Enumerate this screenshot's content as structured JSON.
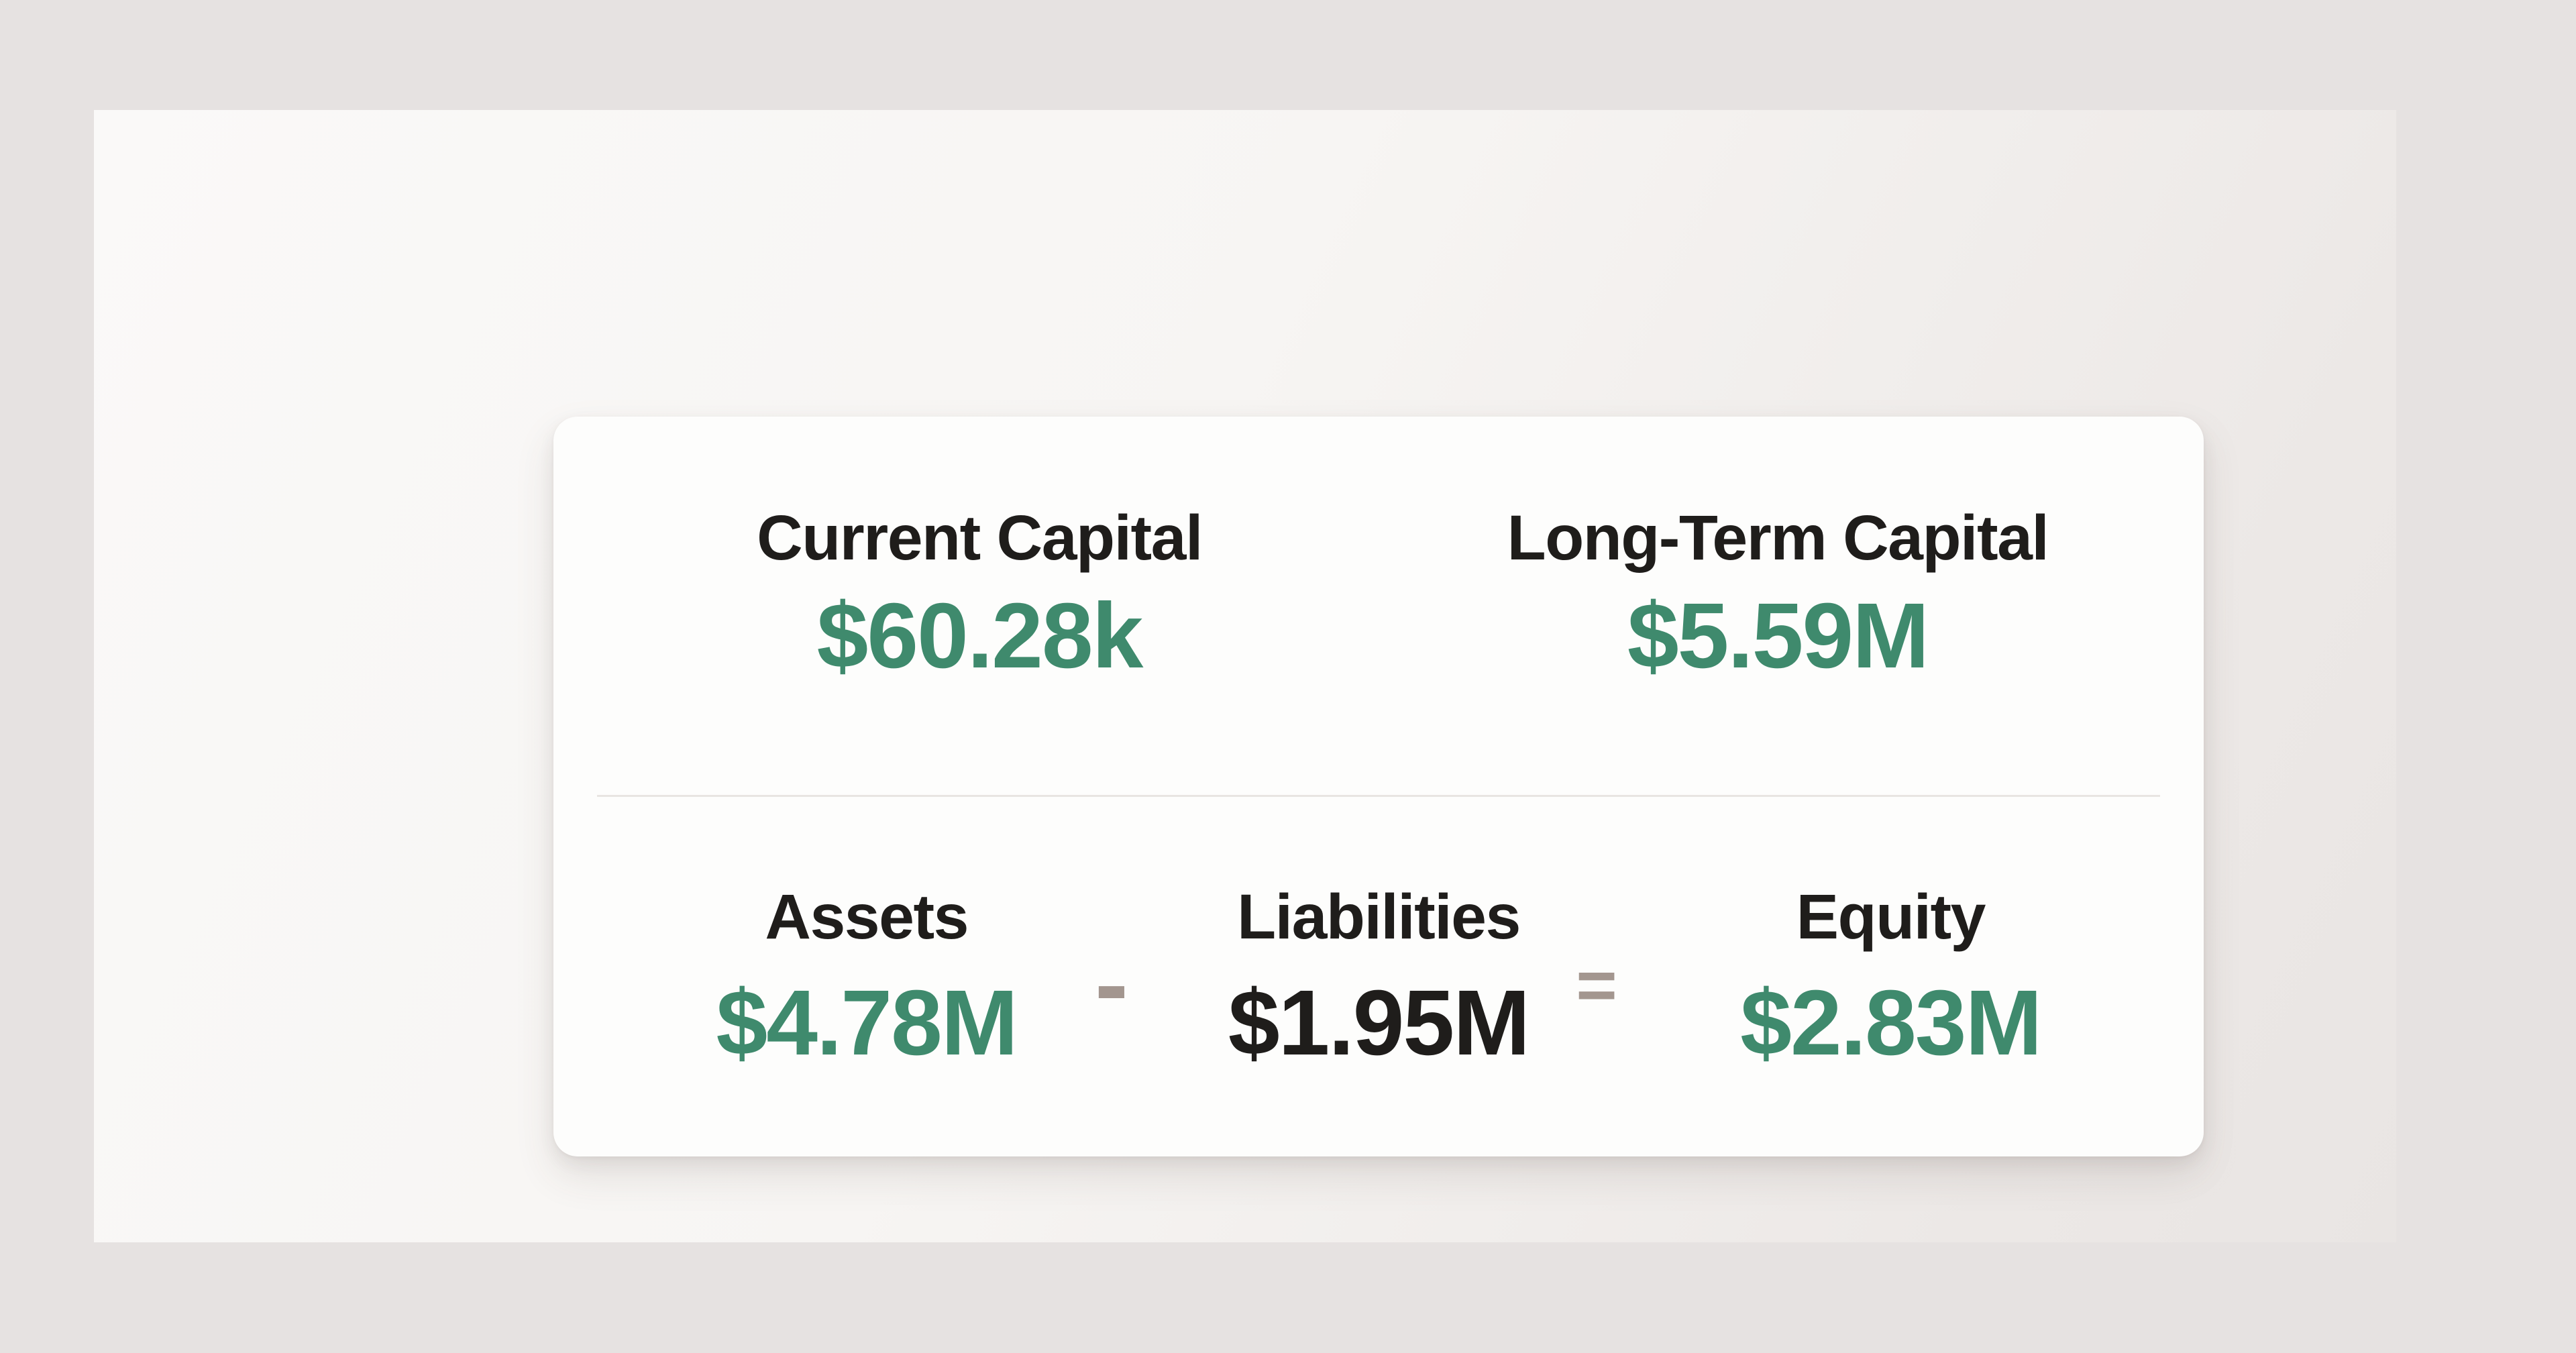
{
  "theme": {
    "accent_green": "#3f8a6d",
    "text_dark": "#1f1d1b",
    "operator_color": "#a3968f",
    "card_bg": "#fdfdfc",
    "divider_color": "#e8e5e2",
    "outer_bg": "#e6e2e1"
  },
  "card": {
    "top_stats": [
      {
        "label": "Current Capital",
        "value": "$60.28k"
      },
      {
        "label": "Long-Term Capital",
        "value": "$5.59M"
      }
    ],
    "equation": {
      "terms": [
        {
          "label": "Assets",
          "value": "$4.78M",
          "color": "green"
        },
        {
          "label": "Liabilities",
          "value": "$1.95M",
          "color": "dark"
        },
        {
          "label": "Equity",
          "value": "$2.83M",
          "color": "green"
        }
      ],
      "operators": [
        "-",
        "="
      ]
    }
  }
}
